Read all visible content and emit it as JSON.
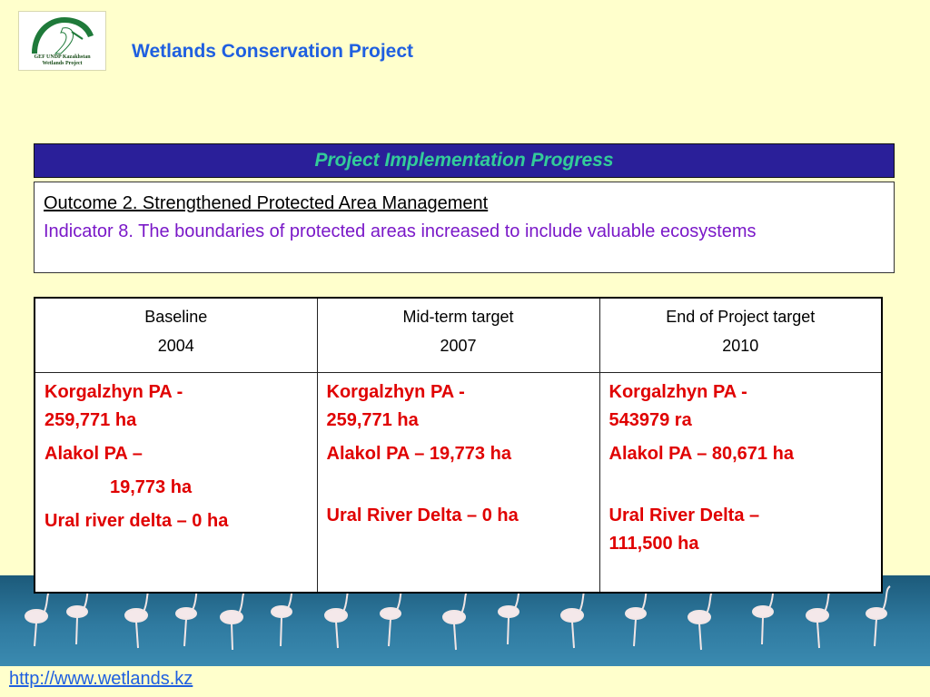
{
  "logo": {
    "caption_line1": "GEF UNDP Kazakhstan",
    "caption_line2": "Wetlands Project"
  },
  "header": {
    "title": "Wetlands Conservation Project"
  },
  "banner": {
    "title": "Project Implementation Progress"
  },
  "outcome": {
    "title": "Outcome 2. Strengthened Protected Area Management",
    "indicator": "Indicator 8. The boundaries of protected areas increased to include valuable ecosystems"
  },
  "table": {
    "columns": [
      {
        "label": "Baseline",
        "year": "2004"
      },
      {
        "label": "Mid-term target",
        "year": "2007"
      },
      {
        "label": "End of Project target",
        "year": "2010"
      }
    ],
    "baseline": {
      "korgalzhyn_name": "Korgalzhyn PA -",
      "korgalzhyn_value": "259,771 ha",
      "alakol_name": "Alakol PA –",
      "alakol_value": "19,773  ha",
      "ural": "Ural river delta – 0 ha"
    },
    "midterm": {
      "korgalzhyn_name": "Korgalzhyn PA -",
      "korgalzhyn_value": "259,771 ha",
      "alakol": "Alakol PA –  19,773  ha",
      "ural": "Ural River Delta – 0 ha"
    },
    "endproject": {
      "korgalzhyn_name": "Korgalzhyn PA -",
      "korgalzhyn_value": "543979 ra",
      "alakol": "Alakol PA – 80,671 ha",
      "ural_line1": "Ural River Delta –",
      "ural_line2": "111,500 ha"
    }
  },
  "footer": {
    "url": "http://www.wetlands.kz"
  }
}
